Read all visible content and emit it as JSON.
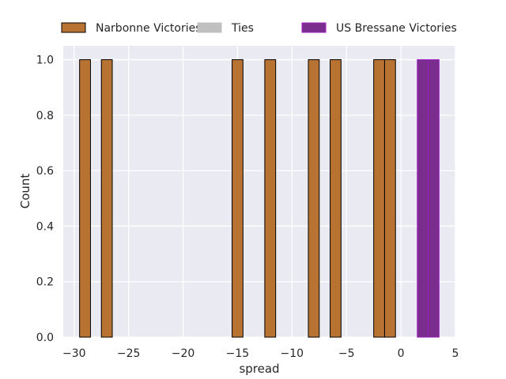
{
  "chart_data": {
    "type": "bar",
    "title": "",
    "xlabel": "spread",
    "ylabel": "Count",
    "xlim": [
      -31,
      5
    ],
    "ylim": [
      0,
      1.05
    ],
    "xticks": [
      -30,
      -25,
      -20,
      -15,
      -10,
      -5,
      0,
      5
    ],
    "xtick_labels": [
      "−30",
      "−25",
      "−20",
      "−15",
      "−10",
      "−5",
      "0",
      "5"
    ],
    "yticks": [
      0.0,
      0.2,
      0.4,
      0.6,
      0.8,
      1.0
    ],
    "ytick_labels": [
      "0.0",
      "0.2",
      "0.4",
      "0.6",
      "0.8",
      "1.0"
    ],
    "grid": true,
    "legend_position": "top",
    "bin_width": 1,
    "series": [
      {
        "name": "Narbonne Victories",
        "color": "#b87333",
        "edge": "#000000",
        "bins": [
          {
            "x0": -29.5,
            "x1": -28.5,
            "count": 1
          },
          {
            "x0": -27.5,
            "x1": -26.5,
            "count": 1
          },
          {
            "x0": -15.5,
            "x1": -14.5,
            "count": 1
          },
          {
            "x0": -12.5,
            "x1": -11.5,
            "count": 1
          },
          {
            "x0": -8.5,
            "x1": -7.5,
            "count": 1
          },
          {
            "x0": -6.5,
            "x1": -5.5,
            "count": 1
          },
          {
            "x0": -2.5,
            "x1": -1.5,
            "count": 1
          },
          {
            "x0": -1.5,
            "x1": -0.5,
            "count": 1
          }
        ]
      },
      {
        "name": "Ties",
        "color": "#c0c0c0",
        "edge": "#c0c0c0",
        "bins": []
      },
      {
        "name": "US Bressane Victories",
        "color": "#7b2d8e",
        "edge": "#9b1fc0",
        "bins": [
          {
            "x0": 1.5,
            "x1": 2.5,
            "count": 1
          },
          {
            "x0": 2.5,
            "x1": 3.5,
            "count": 1
          }
        ]
      }
    ]
  }
}
